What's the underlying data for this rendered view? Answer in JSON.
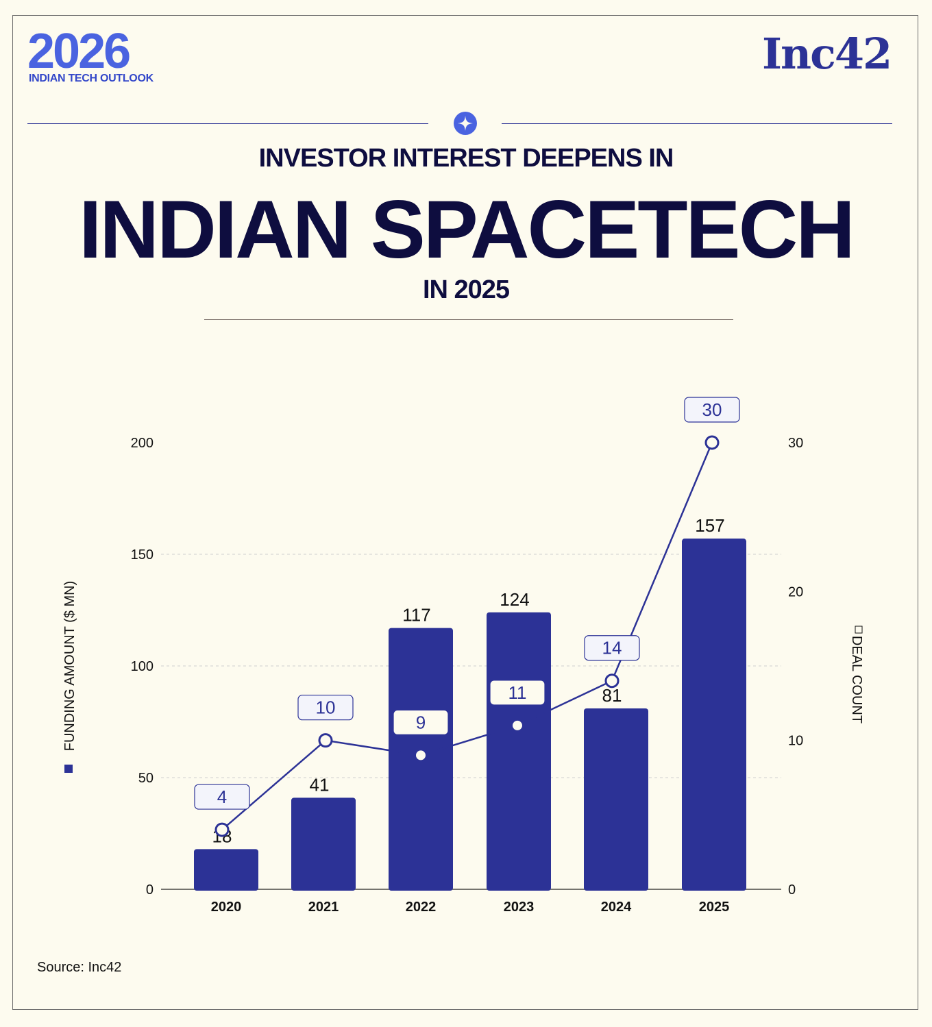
{
  "header": {
    "logo_year": "2026",
    "logo_subtitle": "INDIAN TECH OUTLOOK",
    "brand": "Inc42"
  },
  "title": {
    "line1": "INVESTOR INTEREST DEEPENS IN",
    "line2": "INDIAN SPACETECH",
    "line3": "IN 2025"
  },
  "colors": {
    "bar": "#2c3296",
    "line": "#2c3296",
    "background": "#fdfbef",
    "title": "#0e0d3f"
  },
  "chart_data": {
    "type": "bar",
    "categories": [
      "2020",
      "2021",
      "2022",
      "2023",
      "2024",
      "2025"
    ],
    "series": [
      {
        "name": "FUNDING AMOUNT ($ MN)",
        "type": "bar",
        "axis": "left",
        "values": [
          18,
          41,
          117,
          124,
          81,
          157
        ]
      },
      {
        "name": "DEAL COUNT",
        "type": "line",
        "axis": "right",
        "values": [
          4,
          10,
          9,
          11,
          14,
          30
        ]
      }
    ],
    "ylabel": "FUNDING AMOUNT ($ MN)",
    "y2label": "DEAL COUNT",
    "ylim": [
      0,
      200
    ],
    "y2lim": [
      0,
      30
    ],
    "yticks": [
      0,
      50,
      100,
      150,
      200
    ],
    "y2ticks": [
      0,
      10,
      20,
      30
    ],
    "grid": true
  },
  "footer": {
    "source": "Source: Inc42"
  }
}
